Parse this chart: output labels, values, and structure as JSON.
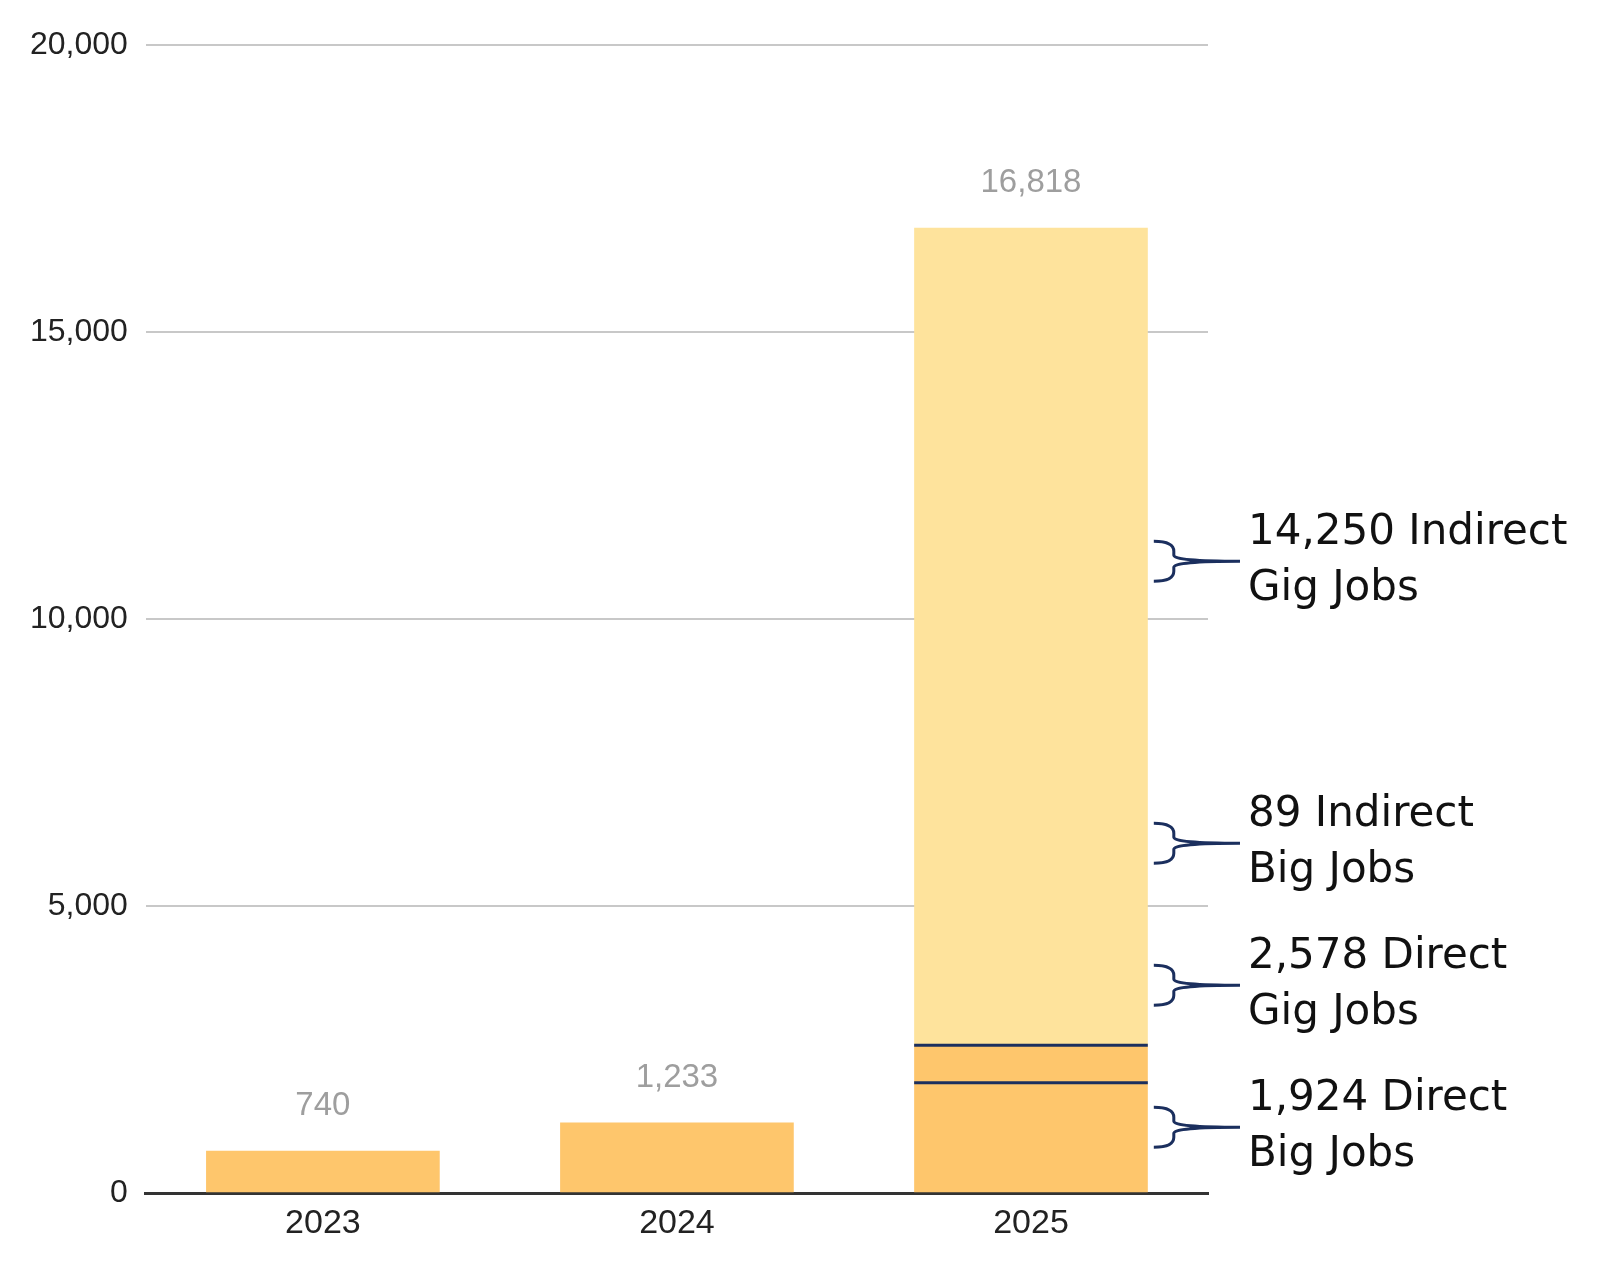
{
  "chart_data": {
    "type": "bar",
    "stacked": true,
    "categories": [
      "2023",
      "2024",
      "2025"
    ],
    "series": [
      {
        "color": "#fec66c",
        "values": [
          740,
          1233,
          1924
        ]
      },
      {
        "color": "#fec66c",
        "values": [
          null,
          null,
          654
        ]
      },
      {
        "color": "#fee39c",
        "values": [
          null,
          null,
          14240
        ]
      }
    ],
    "ylim": [
      0,
      20000
    ],
    "yticks": [
      {
        "value": 0,
        "label": "0"
      },
      {
        "value": 5000,
        "label": "5,000"
      },
      {
        "value": 10000,
        "label": "10,000"
      },
      {
        "value": 15000,
        "label": "15,000"
      },
      {
        "value": 20000,
        "label": "20,000"
      }
    ],
    "grid": "y",
    "legend": false,
    "totals": [
      "740",
      "1,233",
      "16,818"
    ],
    "annotations": [
      "14,250 Indirect Gig Jobs",
      "89 Indirect Big Jobs",
      "2,578 Direct Gig Jobs",
      "1,924 Direct Big Jobs"
    ]
  }
}
